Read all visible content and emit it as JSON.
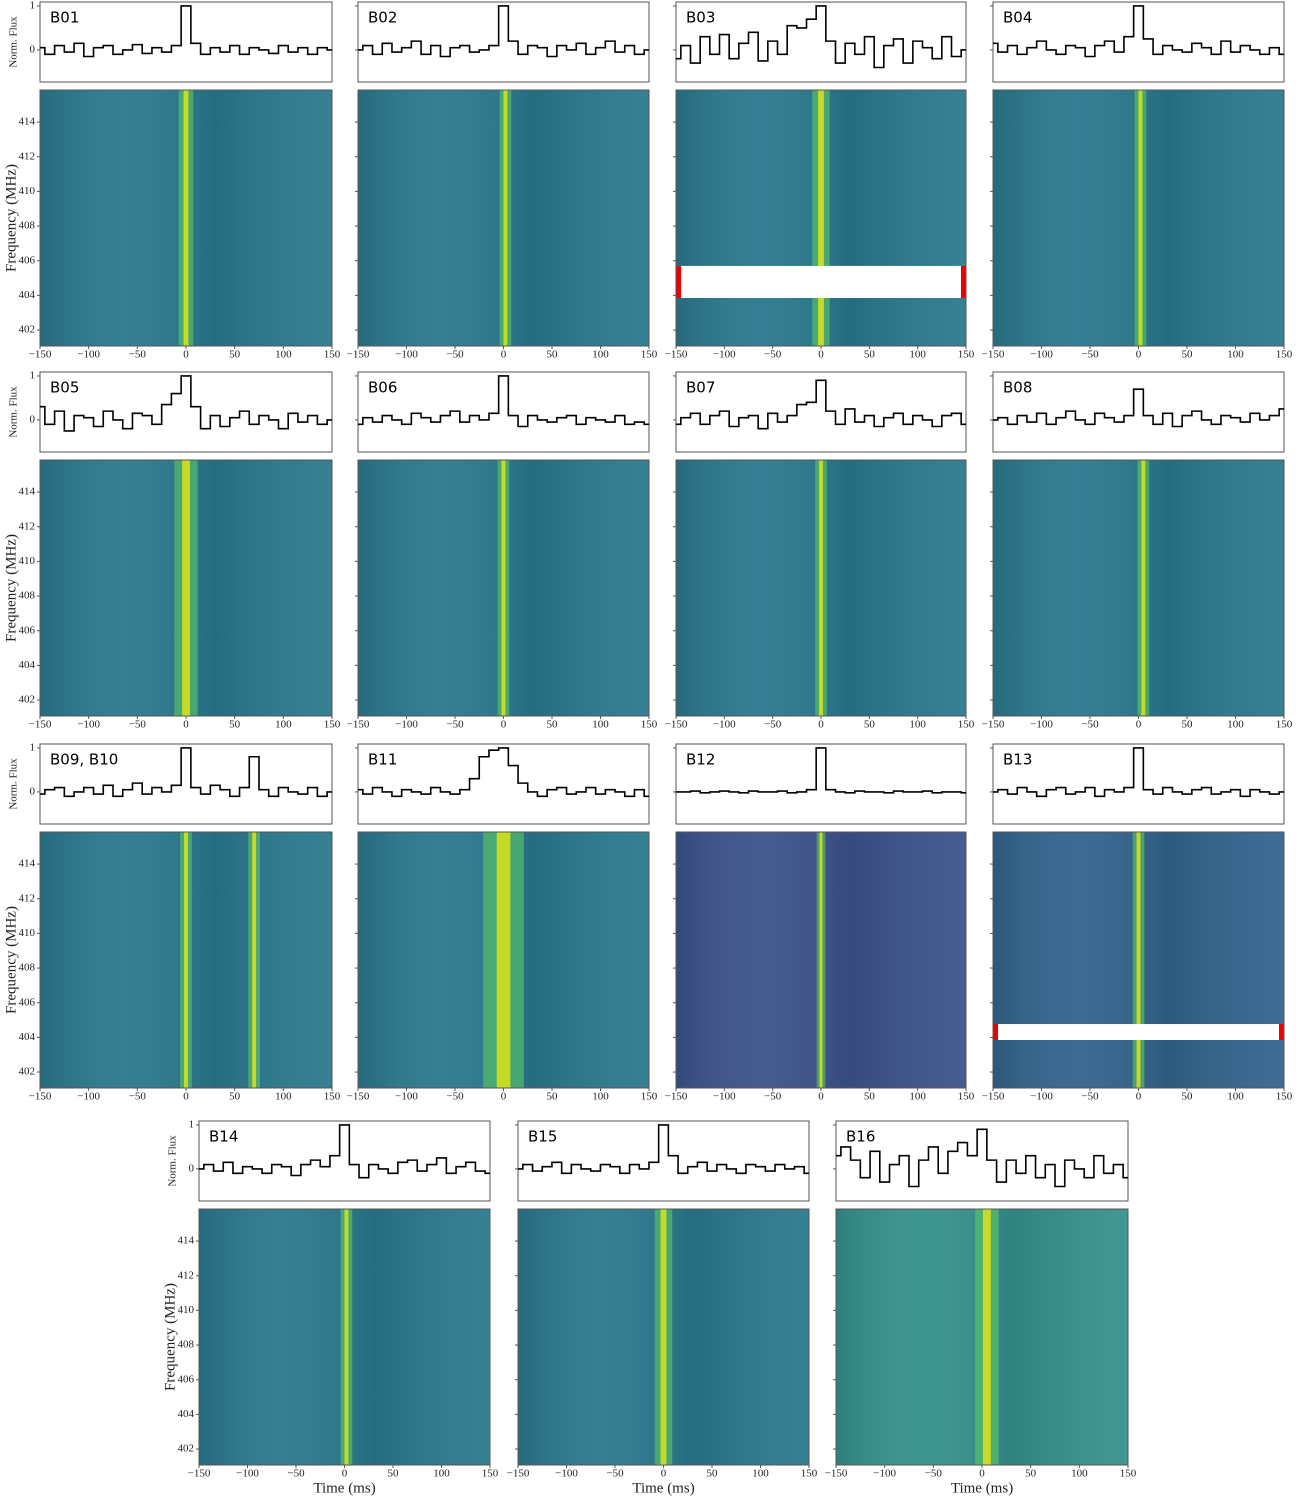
{
  "chart_data": {
    "type": "burst-grid",
    "time_axis": {
      "label": "Time (ms)",
      "xlim": [
        -150,
        150
      ],
      "xticks": [
        {
          "value": -150,
          "label": "−150"
        },
        {
          "value": -100,
          "label": "−100"
        },
        {
          "value": -50,
          "label": "−50"
        },
        0,
        50,
        100,
        150
      ]
    },
    "flux_axis": {
      "label": "Norm. Flux",
      "ylim": [
        -0.73,
        1.09
      ],
      "yticks": [
        0,
        1
      ]
    },
    "freq_axis": {
      "label": "Frequency (MHz)",
      "ylim": [
        401.08,
        415.85
      ],
      "yticks": [
        402,
        404,
        406,
        408,
        410,
        412,
        414
      ]
    },
    "profile_x": [
      -150,
      -140,
      -130,
      -120,
      -110,
      -100,
      -90,
      -80,
      -70,
      -60,
      -50,
      -40,
      -30,
      -20,
      -10,
      0,
      10,
      20,
      30,
      40,
      50,
      60,
      70,
      80,
      90,
      100,
      110,
      120,
      130,
      140,
      150
    ],
    "panels": [
      {
        "title": "B01",
        "burst_time": 0,
        "burst_width": 5,
        "color": "#2a788e",
        "profile": [
          0.05,
          -0.1,
          0.1,
          -0.05,
          0.15,
          -0.15,
          0.05,
          0.1,
          -0.1,
          0.0,
          0.12,
          -0.08,
          0.05,
          -0.05,
          0.1,
          1.0,
          0.15,
          -0.1,
          0.05,
          -0.05,
          0.1,
          -0.1,
          0.05,
          0.0,
          -0.08,
          0.1,
          -0.05,
          0.05,
          -0.1,
          0.05,
          0.0
        ]
      },
      {
        "title": "B02",
        "burst_time": 2,
        "burst_width": 4,
        "color": "#2a788e",
        "profile": [
          0.0,
          0.1,
          -0.1,
          0.15,
          -0.05,
          0.05,
          0.2,
          -0.1,
          0.1,
          -0.15,
          0.05,
          0.1,
          -0.05,
          0.0,
          0.1,
          1.0,
          0.2,
          -0.1,
          0.1,
          0.05,
          -0.15,
          0.1,
          0.0,
          0.15,
          -0.1,
          0.05,
          0.2,
          -0.05,
          0.1,
          -0.1,
          0.0
        ]
      },
      {
        "title": "B03",
        "burst_time": 0,
        "burst_width": 6,
        "color": "#2a788e",
        "profile": [
          -0.2,
          0.1,
          -0.3,
          0.3,
          -0.1,
          0.35,
          -0.2,
          0.15,
          0.4,
          -0.25,
          0.2,
          -0.1,
          0.55,
          0.5,
          0.7,
          1.0,
          0.2,
          -0.3,
          0.15,
          -0.1,
          0.3,
          -0.4,
          0.1,
          0.25,
          -0.3,
          0.2,
          0.05,
          -0.2,
          0.3,
          -0.15,
          0.0
        ]
      },
      {
        "title": "B04",
        "burst_time": 2,
        "burst_width": 4,
        "color": "#2a788e",
        "profile": [
          0.15,
          -0.05,
          0.1,
          -0.1,
          0.05,
          0.2,
          0.0,
          -0.1,
          0.1,
          0.05,
          -0.15,
          0.1,
          0.2,
          -0.05,
          0.3,
          1.0,
          0.25,
          -0.1,
          0.1,
          0.0,
          -0.05,
          0.15,
          0.05,
          -0.1,
          0.2,
          -0.05,
          0.1,
          0.0,
          -0.1,
          0.05,
          -0.1
        ]
      },
      {
        "title": "B05",
        "burst_time": 0,
        "burst_width": 8,
        "color": "#2a788e",
        "profile": [
          0.3,
          -0.1,
          0.2,
          -0.25,
          0.1,
          0.05,
          -0.15,
          0.2,
          0.0,
          -0.2,
          0.15,
          0.1,
          -0.1,
          0.35,
          0.6,
          1.0,
          0.3,
          -0.2,
          0.1,
          -0.15,
          0.05,
          0.2,
          -0.1,
          0.1,
          0.0,
          -0.2,
          0.15,
          -0.05,
          0.1,
          -0.1,
          0.0
        ]
      },
      {
        "title": "B06",
        "burst_time": 0,
        "burst_width": 4,
        "color": "#2a788e",
        "profile": [
          -0.1,
          0.05,
          -0.05,
          0.1,
          0.0,
          -0.1,
          0.15,
          0.05,
          -0.05,
          0.1,
          0.2,
          -0.05,
          0.1,
          0.0,
          0.15,
          1.0,
          0.1,
          -0.15,
          0.1,
          0.0,
          -0.05,
          0.05,
          0.1,
          -0.1,
          0.05,
          0.0,
          -0.05,
          0.1,
          -0.1,
          -0.05,
          -0.1
        ]
      },
      {
        "title": "B07",
        "burst_time": 0,
        "burst_width": 4,
        "color": "#2a788e",
        "profile": [
          -0.1,
          0.05,
          0.15,
          -0.1,
          0.1,
          0.2,
          -0.15,
          0.05,
          0.1,
          -0.2,
          0.15,
          -0.05,
          0.1,
          0.35,
          0.4,
          0.9,
          0.2,
          -0.1,
          0.25,
          -0.05,
          0.1,
          -0.15,
          0.05,
          0.15,
          -0.1,
          0.1,
          0.0,
          -0.15,
          0.1,
          0.15,
          -0.1
        ]
      },
      {
        "title": "B08",
        "burst_time": 5,
        "burst_width": 4,
        "color": "#2a788e",
        "profile": [
          0.0,
          0.05,
          -0.1,
          0.1,
          -0.05,
          0.15,
          -0.1,
          0.05,
          0.2,
          0.0,
          -0.1,
          0.15,
          0.05,
          -0.05,
          0.1,
          0.7,
          0.1,
          -0.1,
          0.15,
          -0.15,
          0.1,
          0.2,
          0.0,
          -0.1,
          0.1,
          0.05,
          -0.05,
          0.15,
          0.0,
          0.1,
          0.25
        ]
      },
      {
        "title": "B09, B10",
        "burst_time": 0,
        "burst_width": 4,
        "second_burst_time": 70,
        "color": "#2a788e",
        "profile": [
          -0.05,
          0.05,
          0.1,
          -0.1,
          0.0,
          0.1,
          -0.05,
          0.15,
          -0.1,
          0.05,
          0.2,
          -0.05,
          0.1,
          0.0,
          0.15,
          1.0,
          0.1,
          -0.05,
          0.15,
          0.05,
          -0.1,
          0.1,
          0.8,
          0.05,
          -0.1,
          0.1,
          0.0,
          -0.05,
          0.1,
          -0.1,
          0.0
        ]
      },
      {
        "title": "B11",
        "burst_time": 0,
        "burst_width": 14,
        "color": "#2a788e",
        "profile": [
          0.05,
          -0.05,
          0.1,
          0.0,
          -0.1,
          0.05,
          0.0,
          -0.05,
          0.1,
          0.0,
          -0.05,
          0.05,
          0.3,
          0.8,
          0.95,
          1.0,
          0.6,
          0.2,
          0.0,
          -0.1,
          0.05,
          0.1,
          -0.05,
          0.0,
          0.1,
          -0.05,
          0.05,
          0.0,
          -0.1,
          0.05,
          -0.1
        ]
      },
      {
        "title": "B12",
        "burst_time": 0,
        "burst_width": 3,
        "color": "#3b528b",
        "profile": [
          0.0,
          0.0,
          0.02,
          -0.02,
          0.0,
          0.02,
          0.0,
          -0.02,
          0.02,
          0.0,
          0.0,
          0.02,
          -0.02,
          0.0,
          0.05,
          1.0,
          0.05,
          0.0,
          -0.02,
          0.02,
          0.0,
          0.0,
          -0.02,
          0.02,
          0.0,
          0.0,
          0.02,
          -0.02,
          0.0,
          0.0,
          -0.02
        ]
      },
      {
        "title": "B13",
        "burst_time": 0,
        "burst_width": 4,
        "color": "#33638d",
        "profile": [
          0.0,
          0.05,
          -0.05,
          0.1,
          0.0,
          -0.1,
          0.05,
          0.1,
          -0.05,
          0.0,
          0.1,
          -0.1,
          0.05,
          0.0,
          0.1,
          1.0,
          0.05,
          -0.05,
          0.1,
          0.0,
          -0.05,
          0.05,
          0.1,
          -0.05,
          0.0,
          0.05,
          -0.1,
          0.05,
          0.0,
          -0.05,
          0.0
        ]
      },
      {
        "title": "B14",
        "burst_time": 2,
        "burst_width": 4,
        "color": "#2a788e",
        "profile": [
          0.0,
          0.1,
          -0.05,
          0.15,
          -0.1,
          0.05,
          0.0,
          -0.1,
          0.1,
          0.05,
          -0.15,
          0.1,
          0.2,
          0.05,
          0.3,
          1.0,
          0.1,
          -0.2,
          0.1,
          0.0,
          -0.1,
          0.15,
          0.2,
          -0.05,
          0.1,
          0.25,
          -0.1,
          0.05,
          0.15,
          -0.05,
          -0.1
        ]
      },
      {
        "title": "B15",
        "burst_time": 0,
        "burst_width": 6,
        "color": "#2a788e",
        "profile": [
          0.0,
          0.1,
          -0.05,
          0.05,
          0.15,
          -0.1,
          0.1,
          0.0,
          -0.05,
          0.1,
          0.05,
          -0.1,
          0.1,
          0.0,
          0.15,
          1.0,
          0.3,
          -0.1,
          0.05,
          0.15,
          -0.05,
          0.1,
          0.0,
          -0.1,
          0.1,
          0.05,
          -0.05,
          0.1,
          0.0,
          0.05,
          -0.1
        ]
      },
      {
        "title": "B16",
        "burst_time": 5,
        "burst_width": 8,
        "color": "#35918b",
        "profile": [
          0.3,
          0.5,
          0.2,
          -0.2,
          0.4,
          -0.3,
          0.1,
          0.3,
          -0.4,
          0.2,
          0.5,
          -0.1,
          0.4,
          0.6,
          0.3,
          0.9,
          0.2,
          -0.3,
          0.2,
          -0.1,
          0.3,
          -0.2,
          0.1,
          -0.4,
          0.2,
          0.0,
          -0.2,
          0.3,
          -0.1,
          0.1,
          -0.2
        ]
      }
    ],
    "masks": [
      {
        "panel": 2,
        "range": [
          403.85,
          405.7
        ]
      },
      {
        "panel": 11,
        "range": [
          403.85,
          404.77
        ]
      }
    ]
  }
}
